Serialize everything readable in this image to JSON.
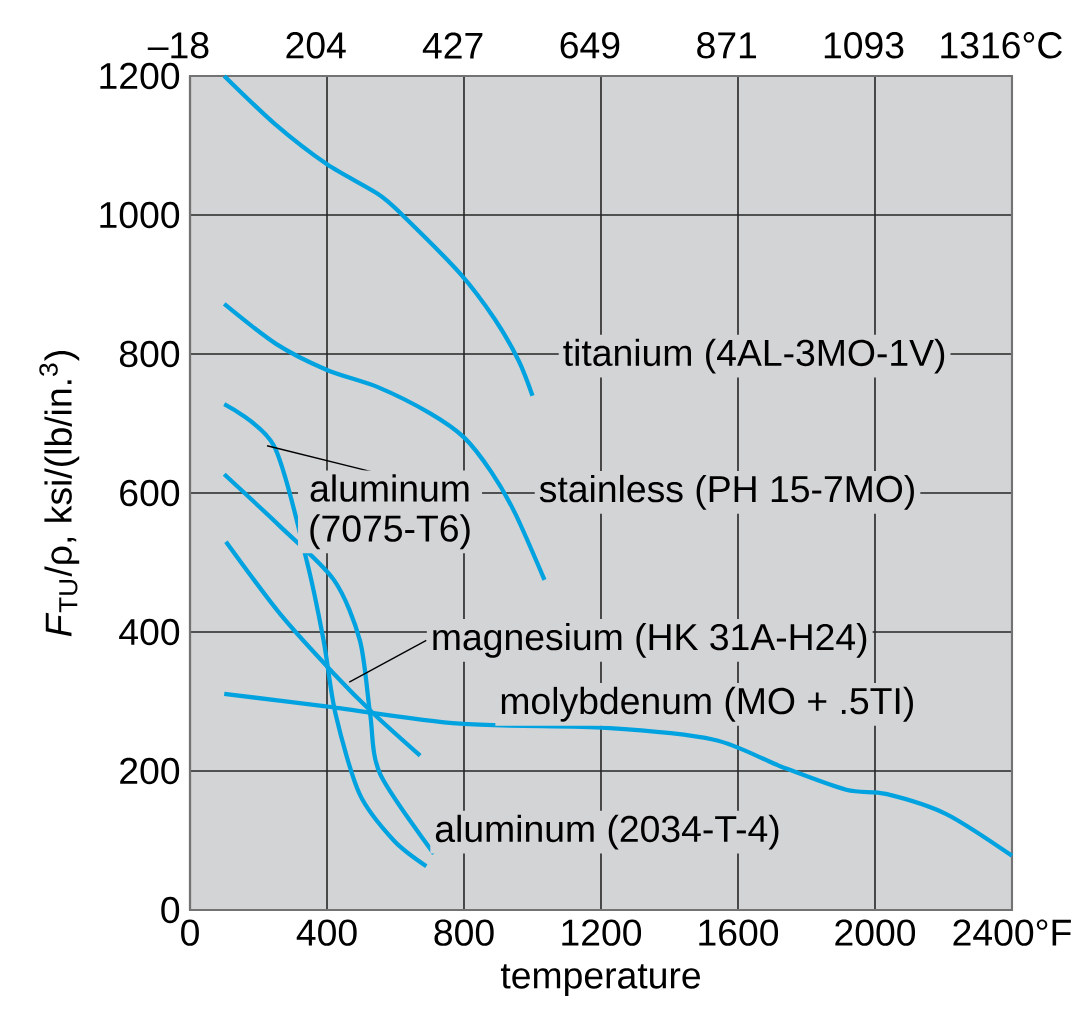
{
  "chart_data": {
    "type": "line",
    "xlabel": "temperature",
    "ylabel": "*F*$_{TU}$/ρ, ksi/(lb/in.$^{3}$)",
    "xlim": [
      0,
      2400
    ],
    "xticks": [
      0,
      400,
      800,
      1200,
      1600,
      2000,
      {
        "value": 2400,
        "label": "2400°F"
      }
    ],
    "ylim": [
      0,
      1200
    ],
    "yticks": [
      0,
      200,
      400,
      600,
      800,
      1000,
      1200
    ],
    "x2lim": [
      -18,
      1316
    ],
    "x2ticks": [
      {
        "value": -18,
        "label": "–18"
      },
      204,
      427,
      649,
      871,
      1093,
      {
        "value": 1316,
        "label": "1316°C"
      }
    ],
    "grid": true,
    "legend": false,
    "series": [
      {
        "name": "titanium (4AL-3MO-1V)",
        "color": "#00a3e0",
        "x": [
          100,
          250,
          400,
          550,
          620,
          790,
          890,
          960,
          1000
        ],
        "values": [
          1200,
          1130,
          1073,
          1030,
          1000,
          915,
          850,
          790,
          740
        ]
      },
      {
        "name": "stainless (PH 15-7MO)",
        "color": "#00a3e0",
        "x": [
          100,
          250,
          400,
          550,
          700,
          800,
          880,
          950,
          1035
        ],
        "values": [
          872,
          815,
          777,
          752,
          715,
          680,
          630,
          570,
          475
        ]
      },
      {
        "name": "aluminum (7075-T6)",
        "color": "#00a3e0",
        "x": [
          100,
          245,
          340,
          390,
          425,
          495,
          595,
          690
        ],
        "values": [
          728,
          668,
          504,
          388,
          282,
          167,
          100,
          63
        ]
      },
      {
        "name": "magnesium (HK 31A-H24)",
        "color": "#00a3e0",
        "x": [
          105,
          263,
          420,
          537,
          672
        ],
        "values": [
          530,
          426,
          340,
          282,
          222
        ]
      },
      {
        "name": "molybdenum (MO + .5TI)",
        "color": "#00a3e0",
        "x": [
          100,
          397,
          788,
          1215,
          1530,
          1723,
          1916,
          2032,
          2208,
          2400
        ],
        "values": [
          311,
          293,
          268,
          262,
          245,
          207,
          173,
          167,
          138,
          78
        ]
      },
      {
        "name": "aluminum (2034-T-4)",
        "color": "#00a3e0",
        "x": [
          100,
          263,
          420,
          496,
          526,
          555,
          712
        ],
        "values": [
          627,
          552,
          475,
          388,
          282,
          196,
          81
        ]
      }
    ]
  }
}
